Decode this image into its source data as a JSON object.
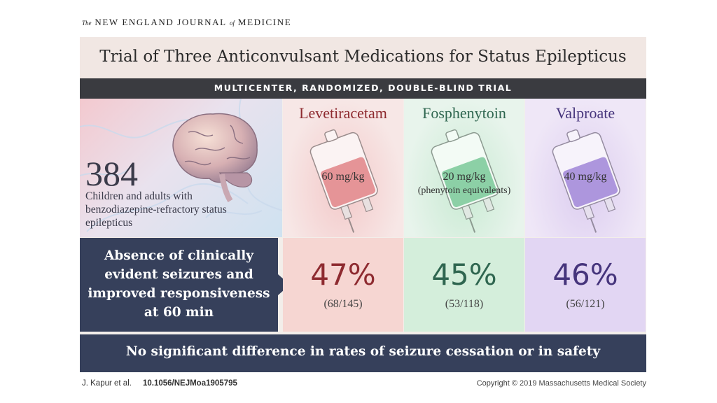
{
  "journal": {
    "prefix": "The",
    "name_part1": "NEW ENGLAND JOURNAL",
    "of": "of",
    "name_part2": "MEDICINE"
  },
  "title": "Trial of Three Anticonvulsant Medications for Status Epilepticus",
  "subtitle": "MULTICENTER, RANDOMIZED, DOUBLE-BLIND TRIAL",
  "population": {
    "count": "384",
    "description": "Children and adults with benzodiazepine-refractory status epilepticus",
    "icon": "brain-icon"
  },
  "drugs": [
    {
      "name": "Levetiracetam",
      "dose": "60 mg/kg",
      "dose_note": "",
      "color": "#8e2b30",
      "fluid": "#e07c80",
      "result_pct": "47%",
      "result_fraction": "(68/145)"
    },
    {
      "name": "Fosphenytoin",
      "dose": "20 mg/kg",
      "dose_note": "(phenytoin equivalents)",
      "color": "#2f6650",
      "fluid": "#72c592",
      "result_pct": "45%",
      "result_fraction": "(53/118)"
    },
    {
      "name": "Valproate",
      "dose": "40 mg/kg",
      "dose_note": "",
      "color": "#46357c",
      "fluid": "#9a7ed6",
      "result_pct": "46%",
      "result_fraction": "(56/121)"
    }
  ],
  "outcome": "Absence of clinically evident seizures and improved responsiveness at 60 min",
  "conclusion": "No significant difference in rates of seizure cessation or in safety",
  "footer": {
    "authors": "J. Kapur et al.",
    "doi": "10.1056/NEJMoa1905795",
    "copyright": "Copyright © 2019 Massachusetts Medical Society"
  },
  "colors": {
    "header_dark": "#3a3b40",
    "outcome_bar": "#36405b",
    "card_bg": "#f3eeea"
  }
}
